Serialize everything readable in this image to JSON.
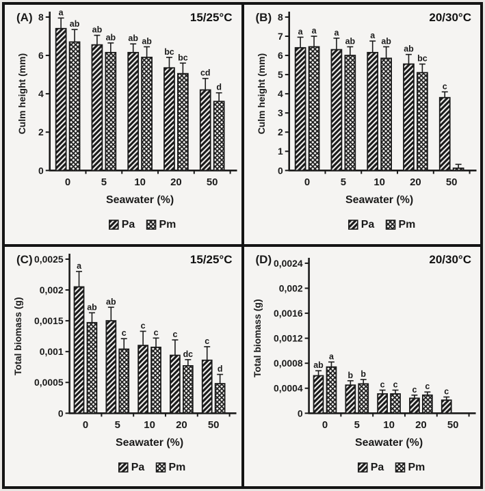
{
  "figure": {
    "colors": {
      "background": "#f5f4f2",
      "frame": "#141414",
      "ink": "#1a1a1a"
    },
    "legend_labels": [
      "Pa",
      "Pm"
    ]
  },
  "chart_data": [
    {
      "id": "A",
      "type": "bar",
      "panel_label": "(A)",
      "condition": "15/25°C",
      "xlabel": "Seawater (%)",
      "ylabel": "Culm height (mm)",
      "categories": [
        "0",
        "5",
        "10",
        "20",
        "50"
      ],
      "ylim": [
        0,
        8
      ],
      "ytick_values": [
        0,
        2,
        4,
        6,
        8
      ],
      "ytick_labels": [
        "0",
        "2",
        "4",
        "6",
        "8"
      ],
      "grid": false,
      "legend_position": "bottom",
      "series": [
        {
          "name": "Pa",
          "pattern": "diagonal-hatch",
          "values": [
            7.4,
            6.55,
            6.15,
            5.35,
            4.2
          ],
          "errors": [
            0.55,
            0.5,
            0.45,
            0.55,
            0.6
          ],
          "letters": [
            "a",
            "ab",
            "ab",
            "bc",
            "cd"
          ]
        },
        {
          "name": "Pm",
          "pattern": "cross-hatch",
          "values": [
            6.7,
            6.15,
            5.9,
            5.05,
            3.6
          ],
          "errors": [
            0.65,
            0.5,
            0.55,
            0.55,
            0.45
          ],
          "letters": [
            "ab",
            "ab",
            "ab",
            "bc",
            "d"
          ]
        }
      ]
    },
    {
      "id": "B",
      "type": "bar",
      "panel_label": "(B)",
      "condition": "20/30°C",
      "xlabel": "Seawater (%)",
      "ylabel": "Culm height (mm)",
      "categories": [
        "0",
        "5",
        "10",
        "20",
        "50"
      ],
      "ylim": [
        0,
        8
      ],
      "ytick_values": [
        0,
        1,
        2,
        3,
        4,
        5,
        6,
        7,
        8
      ],
      "ytick_labels": [
        "0",
        "1",
        "2",
        "3",
        "4",
        "5",
        "6",
        "7",
        "8"
      ],
      "grid": false,
      "legend_position": "bottom",
      "series": [
        {
          "name": "Pa",
          "pattern": "diagonal-hatch",
          "values": [
            6.4,
            6.3,
            6.15,
            5.55,
            3.8
          ],
          "errors": [
            0.55,
            0.6,
            0.6,
            0.5,
            0.3
          ],
          "letters": [
            "a",
            "a",
            "a",
            "ab",
            "c"
          ]
        },
        {
          "name": "Pm",
          "pattern": "cross-hatch",
          "values": [
            6.45,
            6.0,
            5.85,
            5.1,
            0.12
          ],
          "errors": [
            0.55,
            0.45,
            0.6,
            0.45,
            0.2
          ],
          "letters": [
            "a",
            "ab",
            "ab",
            "bc",
            ""
          ]
        }
      ]
    },
    {
      "id": "C",
      "type": "bar",
      "panel_label": "(C)",
      "condition": "15/25°C",
      "xlabel": "Seawater (%)",
      "ylabel": "Total biomass (g)",
      "categories": [
        "0",
        "5",
        "10",
        "20",
        "50"
      ],
      "ylim": [
        0,
        0.0025
      ],
      "ytick_values": [
        0,
        0.0005,
        0.001,
        0.0015,
        0.002,
        0.0025
      ],
      "ytick_labels": [
        "0",
        "0,0005",
        "0,001",
        "0,0015",
        "0,002",
        "0,0025"
      ],
      "grid": false,
      "legend_position": "bottom",
      "series": [
        {
          "name": "Pa",
          "pattern": "diagonal-hatch",
          "values": [
            0.00205,
            0.0015,
            0.0011,
            0.00094,
            0.00086
          ],
          "errors": [
            0.00025,
            0.00022,
            0.00023,
            0.00025,
            0.00022
          ],
          "letters": [
            "a",
            "ab",
            "c",
            "c",
            "c"
          ]
        },
        {
          "name": "Pm",
          "pattern": "cross-hatch",
          "values": [
            0.00147,
            0.00104,
            0.00107,
            0.00077,
            0.00048
          ],
          "errors": [
            0.00016,
            0.00017,
            0.00015,
            0.0001,
            0.00015
          ],
          "letters": [
            "ab",
            "c",
            "c",
            "dc",
            "d"
          ]
        }
      ]
    },
    {
      "id": "D",
      "type": "bar",
      "panel_label": "(D)",
      "condition": "20/30°C",
      "xlabel": "Seawater (%)",
      "ylabel": "Total biomass (g)",
      "categories": [
        "0",
        "5",
        "10",
        "20",
        "50"
      ],
      "ylim": [
        0,
        0.0024
      ],
      "ytick_values": [
        0,
        0.0004,
        0.0008,
        0.0012,
        0.0016,
        0.002,
        0.0024
      ],
      "ytick_labels": [
        "0",
        "0,0004",
        "0,0008",
        "0,0012",
        "0,0016",
        "0,002",
        "0,0024"
      ],
      "grid": false,
      "legend_position": "bottom",
      "series": [
        {
          "name": "Pa",
          "pattern": "diagonal-hatch",
          "values": [
            0.0006,
            0.00045,
            0.00031,
            0.00024,
            0.00021
          ],
          "errors": [
            8e-05,
            7e-05,
            6e-05,
            5e-05,
            5e-05
          ],
          "letters": [
            "ab",
            "b",
            "c",
            "c",
            "c"
          ]
        },
        {
          "name": "Pm",
          "pattern": "cross-hatch",
          "values": [
            0.00074,
            0.00047,
            0.00031,
            0.00029,
            null
          ],
          "errors": [
            8e-05,
            7e-05,
            6e-05,
            5e-05,
            null
          ],
          "letters": [
            "a",
            "b",
            "c",
            "c",
            ""
          ]
        }
      ]
    }
  ]
}
